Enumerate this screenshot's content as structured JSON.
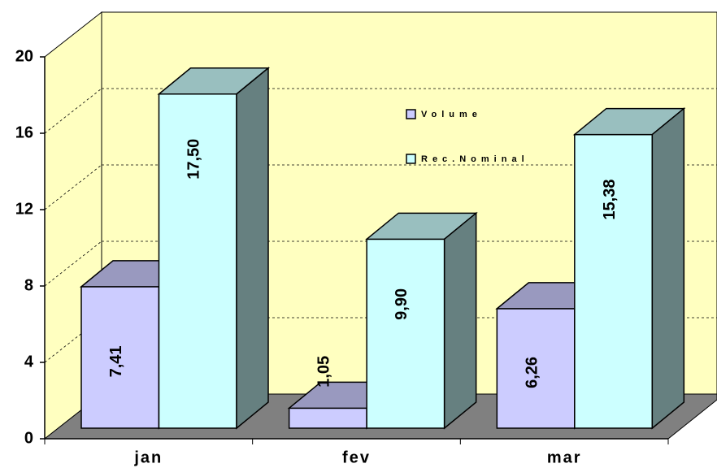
{
  "chart_data": {
    "type": "bar",
    "categories": [
      "jan",
      "fev",
      "mar"
    ],
    "series": [
      {
        "name": "Volume",
        "color": "#ccccff",
        "values": [
          7.41,
          1.05,
          6.26
        ],
        "value_labels": [
          "7,41",
          "1,05",
          "6,26"
        ]
      },
      {
        "name": "Rec.Nominal",
        "color": "#ccffff",
        "values": [
          17.5,
          9.9,
          15.38
        ],
        "value_labels": [
          "17,50",
          "9,90",
          "15,38"
        ]
      }
    ],
    "ylim": [
      0,
      20
    ],
    "yticks": [
      0,
      4,
      8,
      12,
      16,
      20
    ],
    "grid": true,
    "legend": "right"
  }
}
